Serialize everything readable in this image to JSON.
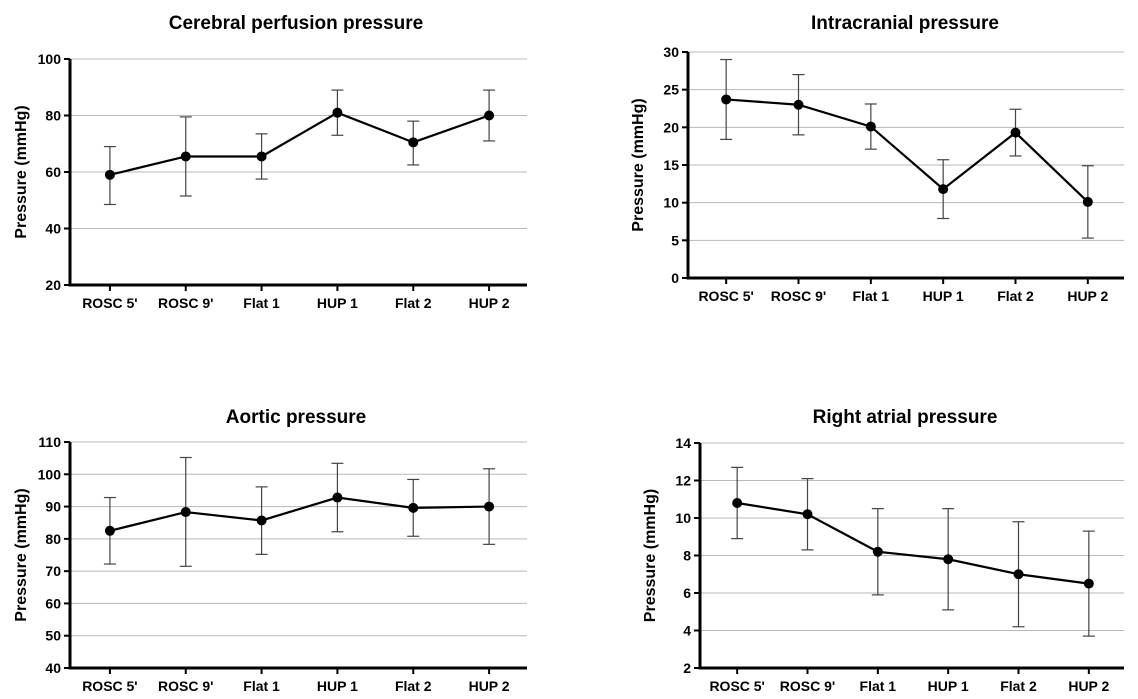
{
  "chart_data": [
    {
      "type": "line",
      "title": "Cerebral perfusion pressure",
      "ylabel": "Pressure (mmHg)",
      "xlabel": "",
      "categories": [
        "ROSC 5'",
        "ROSC 9'",
        "Flat 1",
        "HUP 1",
        "Flat 2",
        "HUP 2"
      ],
      "values": [
        59,
        65.5,
        65.5,
        81,
        70.5,
        80
      ],
      "err_low": [
        48.5,
        51.5,
        57.5,
        73,
        62.5,
        71
      ],
      "err_high": [
        69,
        79.5,
        73.5,
        89,
        78,
        89
      ],
      "ylim": [
        20,
        100
      ],
      "yticks": [
        20,
        40,
        60,
        80,
        100
      ],
      "grid": true
    },
    {
      "type": "line",
      "title": "Intracranial pressure",
      "ylabel": "Pressure (mmHg)",
      "xlabel": "",
      "categories": [
        "ROSC 5'",
        "ROSC 9'",
        "Flat 1",
        "HUP 1",
        "Flat 2",
        "HUP 2"
      ],
      "values": [
        23.7,
        23,
        20.1,
        11.8,
        19.3,
        10.1
      ],
      "err_low": [
        18.4,
        19,
        17.1,
        7.9,
        16.2,
        5.3
      ],
      "err_high": [
        29,
        27,
        23.1,
        15.7,
        22.4,
        14.9
      ],
      "ylim": [
        0,
        30
      ],
      "yticks": [
        0,
        5,
        10,
        15,
        20,
        25,
        30
      ],
      "grid": true
    },
    {
      "type": "line",
      "title": "Aortic pressure",
      "ylabel": "Pressure (mmHg)",
      "xlabel": "",
      "categories": [
        "ROSC 5'",
        "ROSC 9'",
        "Flat 1",
        "HUP 1",
        "Flat 2",
        "HUP 2"
      ],
      "values": [
        82.5,
        88.3,
        85.7,
        92.8,
        89.6,
        90
      ],
      "err_low": [
        72.2,
        71.5,
        75.2,
        82.2,
        80.8,
        78.3
      ],
      "err_high": [
        92.8,
        105.2,
        96.1,
        103.4,
        98.4,
        101.7
      ],
      "ylim": [
        40,
        110
      ],
      "yticks": [
        40,
        50,
        60,
        70,
        80,
        90,
        100,
        110
      ],
      "grid": true
    },
    {
      "type": "line",
      "title": "Right atrial pressure",
      "ylabel": "Pressure (mmHg)",
      "xlabel": "",
      "categories": [
        "ROSC 5'",
        "ROSC 9'",
        "Flat 1",
        "HUP 1",
        "Flat 2",
        "HUP 2"
      ],
      "values": [
        10.8,
        10.2,
        8.2,
        7.8,
        7,
        6.5
      ],
      "err_low": [
        8.9,
        8.3,
        5.9,
        5.1,
        4.2,
        3.7
      ],
      "err_high": [
        12.7,
        12.1,
        10.5,
        10.5,
        9.8,
        9.3
      ],
      "ylim": [
        2,
        14
      ],
      "yticks": [
        2,
        4,
        6,
        8,
        10,
        12,
        14
      ],
      "grid": true
    }
  ]
}
